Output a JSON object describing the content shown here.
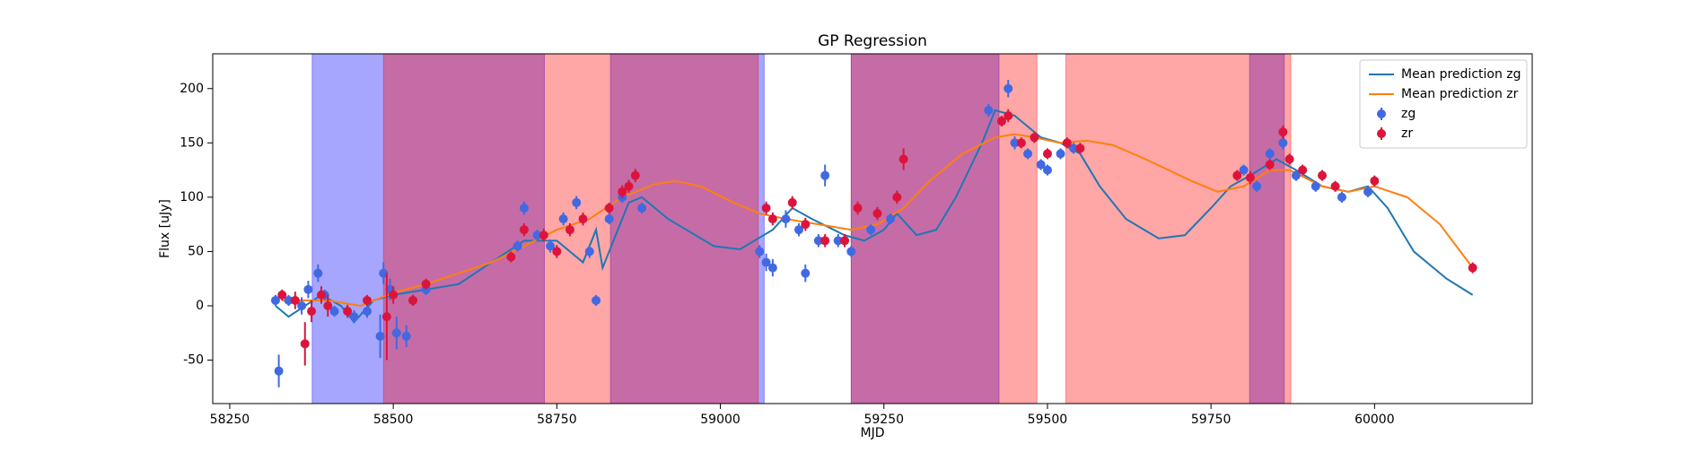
{
  "chart_data": {
    "type": "line",
    "title": "GP Regression",
    "xlabel": "MJD",
    "ylabel": "Flux [uJy]",
    "xlim": [
      58224,
      60241
    ],
    "ylim": [
      -90,
      232
    ],
    "xticks": [
      58250,
      58500,
      58750,
      59000,
      59250,
      59500,
      59750,
      60000
    ],
    "yticks": [
      -50,
      0,
      50,
      100,
      150,
      200
    ],
    "legend": "upper right",
    "spans": [
      {
        "color": "#0000ff",
        "ranges": [
          [
            58376,
            58731
          ],
          [
            58832,
            59067
          ],
          [
            59200,
            59426
          ],
          [
            59809,
            59862
          ]
        ]
      },
      {
        "color": "#ff0000",
        "ranges": [
          [
            58485,
            59058
          ],
          [
            59200,
            59484
          ],
          [
            59528,
            59872
          ]
        ]
      }
    ],
    "series": [
      {
        "name": "Mean prediction zg",
        "color": "#1f77b4",
        "kind": "line",
        "x": [
          58320,
          58340,
          58390,
          58420,
          58440,
          58470,
          58500,
          58550,
          58600,
          58700,
          58750,
          58790,
          58810,
          58820,
          58860,
          58880,
          58920,
          58990,
          59030,
          59080,
          59110,
          59140,
          59190,
          59220,
          59250,
          59270,
          59300,
          59330,
          59360,
          59400,
          59420,
          59450,
          59490,
          59520,
          59550,
          59580,
          59620,
          59670,
          59710,
          59750,
          59780,
          59810,
          59850,
          59880,
          59920,
          59960,
          59990,
          60020,
          60060,
          60110,
          60150
        ],
        "values": [
          0,
          -10,
          10,
          0,
          -15,
          5,
          10,
          15,
          20,
          60,
          60,
          40,
          70,
          35,
          95,
          100,
          80,
          55,
          52,
          70,
          90,
          80,
          65,
          60,
          70,
          85,
          65,
          70,
          100,
          150,
          180,
          175,
          155,
          150,
          140,
          110,
          80,
          62,
          65,
          90,
          110,
          120,
          135,
          125,
          110,
          105,
          110,
          90,
          50,
          25,
          10
        ]
      },
      {
        "name": "Mean prediction zr",
        "color": "#ff7f0e",
        "kind": "line",
        "x": [
          58330,
          58400,
          58450,
          58500,
          58550,
          58600,
          58650,
          58700,
          58750,
          58800,
          58850,
          58900,
          58930,
          58970,
          59020,
          59060,
          59100,
          59150,
          59200,
          59240,
          59280,
          59320,
          59370,
          59420,
          59450,
          59480,
          59520,
          59560,
          59600,
          59650,
          59720,
          59760,
          59800,
          59840,
          59870,
          59920,
          59960,
          60000,
          60050,
          60100,
          60150
        ],
        "values": [
          5,
          5,
          0,
          12,
          20,
          30,
          40,
          55,
          70,
          80,
          100,
          112,
          115,
          110,
          95,
          85,
          80,
          75,
          70,
          75,
          90,
          115,
          140,
          155,
          158,
          155,
          150,
          152,
          148,
          135,
          115,
          105,
          110,
          125,
          125,
          110,
          105,
          110,
          100,
          75,
          35
        ]
      },
      {
        "name": "zg",
        "color": "#4169e1",
        "kind": "errorbar",
        "x": [
          58320,
          58325,
          58340,
          58360,
          58370,
          58385,
          58395,
          58410,
          58440,
          58460,
          58480,
          58485,
          58495,
          58505,
          58520,
          58530,
          58550,
          58690,
          58700,
          58720,
          58740,
          58760,
          58780,
          58800,
          58810,
          58830,
          58850,
          58880,
          59060,
          59070,
          59080,
          59100,
          59120,
          59130,
          59150,
          59160,
          59180,
          59200,
          59230,
          59260,
          59410,
          59440,
          59450,
          59470,
          59490,
          59500,
          59520,
          59540,
          59800,
          59820,
          59840,
          59860,
          59880,
          59910,
          59950,
          59990
        ],
        "values": [
          5,
          -60,
          5,
          0,
          15,
          30,
          10,
          -5,
          -10,
          -5,
          -28,
          30,
          15,
          -25,
          -28,
          5,
          15,
          55,
          90,
          65,
          55,
          80,
          95,
          50,
          5,
          80,
          100,
          90,
          50,
          40,
          35,
          80,
          70,
          30,
          60,
          120,
          60,
          50,
          70,
          80,
          180,
          200,
          150,
          140,
          130,
          125,
          140,
          145,
          125,
          110,
          140,
          150,
          120,
          110,
          100,
          105
        ],
        "errors": [
          5,
          15,
          5,
          8,
          8,
          8,
          5,
          5,
          6,
          6,
          20,
          10,
          10,
          15,
          10,
          5,
          5,
          5,
          6,
          5,
          6,
          6,
          6,
          6,
          5,
          5,
          5,
          5,
          6,
          8,
          8,
          8,
          6,
          8,
          6,
          10,
          6,
          5,
          5,
          5,
          6,
          8,
          6,
          5,
          5,
          5,
          5,
          5,
          5,
          5,
          5,
          6,
          5,
          5,
          5,
          5
        ]
      },
      {
        "name": "zr",
        "color": "#dc143c",
        "kind": "errorbar",
        "x": [
          58330,
          58350,
          58365,
          58375,
          58390,
          58400,
          58430,
          58460,
          58490,
          58500,
          58530,
          58550,
          58680,
          58700,
          58730,
          58750,
          58770,
          58790,
          58830,
          58850,
          58860,
          58870,
          59070,
          59080,
          59110,
          59130,
          59160,
          59190,
          59210,
          59240,
          59270,
          59280,
          59430,
          59440,
          59460,
          59480,
          59500,
          59530,
          59550,
          59790,
          59810,
          59840,
          59860,
          59870,
          59890,
          59920,
          59940,
          60000,
          60150
        ],
        "values": [
          10,
          5,
          -35,
          -5,
          10,
          0,
          -5,
          5,
          -10,
          10,
          5,
          20,
          45,
          70,
          65,
          50,
          70,
          80,
          90,
          105,
          110,
          120,
          90,
          80,
          95,
          75,
          60,
          60,
          90,
          85,
          100,
          135,
          170,
          175,
          150,
          155,
          140,
          150,
          145,
          120,
          118,
          130,
          160,
          135,
          125,
          120,
          110,
          115,
          35
        ],
        "errors": [
          5,
          8,
          20,
          10,
          8,
          10,
          6,
          5,
          40,
          8,
          5,
          5,
          5,
          6,
          6,
          6,
          6,
          6,
          5,
          6,
          6,
          6,
          6,
          6,
          6,
          6,
          6,
          6,
          6,
          6,
          6,
          10,
          5,
          6,
          5,
          5,
          5,
          5,
          5,
          5,
          6,
          5,
          6,
          5,
          5,
          5,
          5,
          5,
          5
        ]
      }
    ]
  }
}
